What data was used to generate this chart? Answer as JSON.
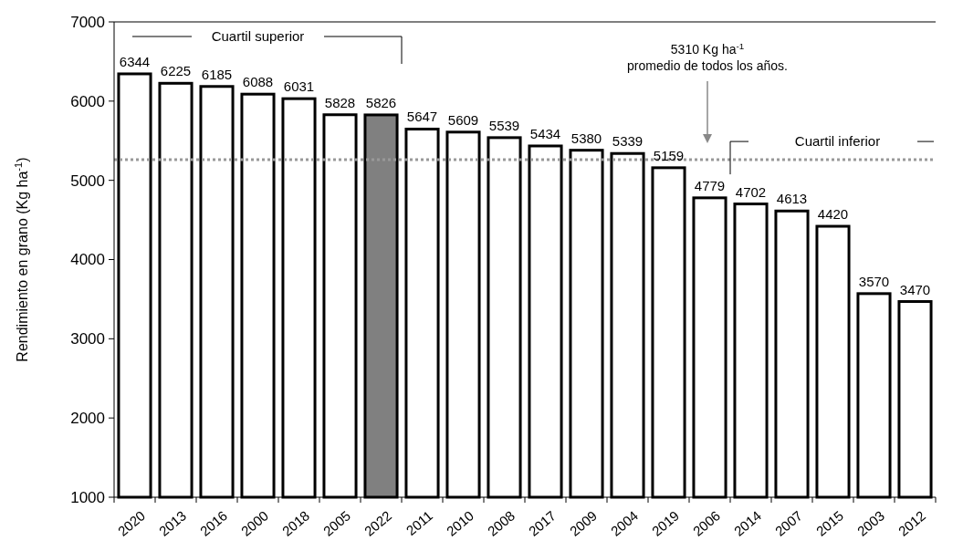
{
  "chart_data": {
    "type": "bar",
    "ylabel": "Rendimiento en grano (Kg ha$^{-1}$)",
    "categories": [
      "2020",
      "2013",
      "2016",
      "2000",
      "2018",
      "2005",
      "2022",
      "2011",
      "2010",
      "2008",
      "2017",
      "2009",
      "2004",
      "2019",
      "2006",
      "2014",
      "2007",
      "2015",
      "2003",
      "2012"
    ],
    "values": [
      6344,
      6225,
      6185,
      6088,
      6031,
      5828,
      5826,
      5647,
      5609,
      5539,
      5434,
      5380,
      5339,
      5159,
      4779,
      4702,
      4613,
      4420,
      3570,
      3470
    ],
    "colors": [
      "#ffffff",
      "#ffffff",
      "#ffffff",
      "#ffffff",
      "#ffffff",
      "#ffffff",
      "#808080",
      "#ffffff",
      "#ffffff",
      "#ffffff",
      "#ffffff",
      "#ffffff",
      "#ffffff",
      "#ffffff",
      "#ffffff",
      "#ffffff",
      "#ffffff",
      "#ffffff",
      "#ffffff",
      "#ffffff"
    ],
    "data_labels": true,
    "ylim": [
      1000,
      7000
    ],
    "yticks": [
      1000,
      2000,
      3000,
      4000,
      5000,
      6000,
      7000
    ],
    "ref_lines": [
      {
        "axis": "y",
        "value": 5260,
        "color": "#999999",
        "line_style": "dotted"
      }
    ],
    "annotations": [
      "Cuartil superior",
      "Cuartil inferior",
      "5310 Kg ha$^{-1}$ promedio de todos los años."
    ]
  }
}
